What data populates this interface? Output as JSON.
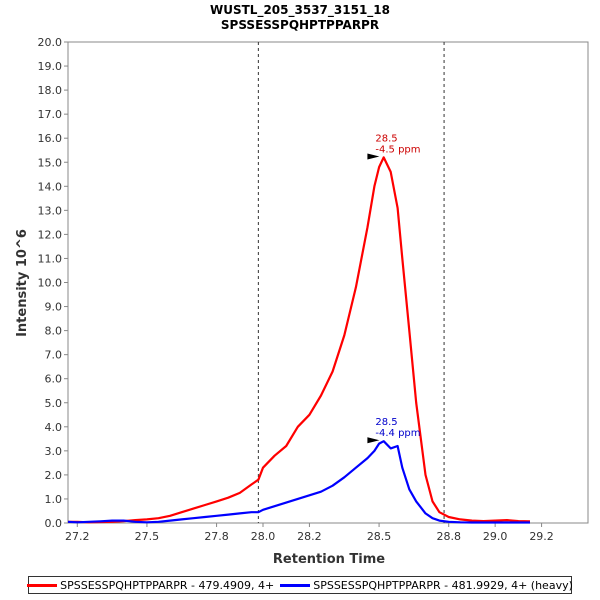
{
  "chart_data": {
    "type": "line",
    "title": "WUSTL_205_3537_3151_18",
    "subtitle": "SPSSESSPQHPTPPARPR",
    "xlabel": "Retention Time",
    "ylabel": "Intensity 10^6",
    "xlim": [
      27.16,
      29.4
    ],
    "ylim": [
      0,
      20
    ],
    "xticks": [
      "27.2",
      "27.5",
      "27.8",
      "28.0",
      "28.2",
      "28.5",
      "28.8",
      "29.0",
      "29.2"
    ],
    "xtick_values": [
      27.2,
      27.5,
      27.8,
      28.0,
      28.2,
      28.5,
      28.8,
      29.0,
      29.2
    ],
    "yticks": [
      "0.0",
      "1.0",
      "2.0",
      "3.0",
      "4.0",
      "5.0",
      "6.0",
      "7.0",
      "8.0",
      "9.0",
      "10.0",
      "11.0",
      "12.0",
      "13.0",
      "14.0",
      "15.0",
      "16.0",
      "17.0",
      "18.0",
      "19.0",
      "20.0"
    ],
    "ytick_values": [
      0,
      1,
      2,
      3,
      4,
      5,
      6,
      7,
      8,
      9,
      10,
      11,
      12,
      13,
      14,
      15,
      16,
      17,
      18,
      19,
      20
    ],
    "vlines": [
      27.98,
      28.78
    ],
    "legend_position": "bottom",
    "series": [
      {
        "name": "SPSSESSPQHPTPPARPR - 479.4909, 4+",
        "color": "#ff0000",
        "x": [
          27.16,
          27.2,
          27.25,
          27.3,
          27.35,
          27.4,
          27.45,
          27.5,
          27.55,
          27.6,
          27.65,
          27.7,
          27.75,
          27.8,
          27.85,
          27.9,
          27.95,
          27.98,
          28.0,
          28.05,
          28.1,
          28.15,
          28.2,
          28.25,
          28.3,
          28.35,
          28.4,
          28.45,
          28.48,
          28.5,
          28.52,
          28.55,
          28.58,
          28.6,
          28.63,
          28.66,
          28.7,
          28.73,
          28.76,
          28.8,
          28.85,
          28.9,
          28.95,
          29.0,
          29.05,
          29.1,
          29.15
        ],
        "y": [
          0.05,
          0.05,
          0.03,
          0.04,
          0.05,
          0.08,
          0.12,
          0.15,
          0.2,
          0.3,
          0.45,
          0.6,
          0.75,
          0.9,
          1.05,
          1.25,
          1.6,
          1.8,
          2.3,
          2.8,
          3.2,
          4.0,
          4.5,
          5.3,
          6.3,
          7.8,
          9.8,
          12.3,
          14.0,
          14.8,
          15.2,
          14.6,
          13.1,
          11.0,
          8.0,
          5.0,
          2.0,
          0.9,
          0.45,
          0.25,
          0.15,
          0.1,
          0.08,
          0.1,
          0.12,
          0.08,
          0.07
        ]
      },
      {
        "name": "SPSSESSPQHPTPPARPR - 481.9929, 4+ (heavy)",
        "color": "#0000ff",
        "x": [
          27.16,
          27.2,
          27.25,
          27.3,
          27.35,
          27.4,
          27.45,
          27.5,
          27.55,
          27.6,
          27.65,
          27.7,
          27.75,
          27.8,
          27.85,
          27.9,
          27.95,
          27.98,
          28.0,
          28.05,
          28.1,
          28.15,
          28.2,
          28.25,
          28.3,
          28.35,
          28.4,
          28.45,
          28.48,
          28.5,
          28.52,
          28.55,
          28.58,
          28.6,
          28.63,
          28.66,
          28.7,
          28.73,
          28.76,
          28.8,
          28.85,
          28.9,
          28.95,
          29.0,
          29.05,
          29.1,
          29.15
        ],
        "y": [
          0.05,
          0.03,
          0.05,
          0.07,
          0.1,
          0.1,
          0.05,
          0.03,
          0.05,
          0.1,
          0.15,
          0.2,
          0.25,
          0.3,
          0.35,
          0.4,
          0.45,
          0.45,
          0.55,
          0.7,
          0.85,
          1.0,
          1.15,
          1.3,
          1.55,
          1.9,
          2.3,
          2.7,
          3.0,
          3.3,
          3.4,
          3.1,
          3.2,
          2.3,
          1.4,
          0.9,
          0.4,
          0.2,
          0.1,
          0.05,
          0.03,
          0.02,
          0.02,
          0.02,
          0.02,
          0.02,
          0.02
        ]
      }
    ],
    "annotations": [
      {
        "x": 28.51,
        "y": 15.2,
        "lines": [
          "28.5",
          "-4.5 ppm"
        ],
        "color": "#cc0000"
      },
      {
        "x": 28.51,
        "y": 3.4,
        "lines": [
          "28.5",
          "-4.4 ppm"
        ],
        "color": "#0000cc"
      }
    ]
  }
}
